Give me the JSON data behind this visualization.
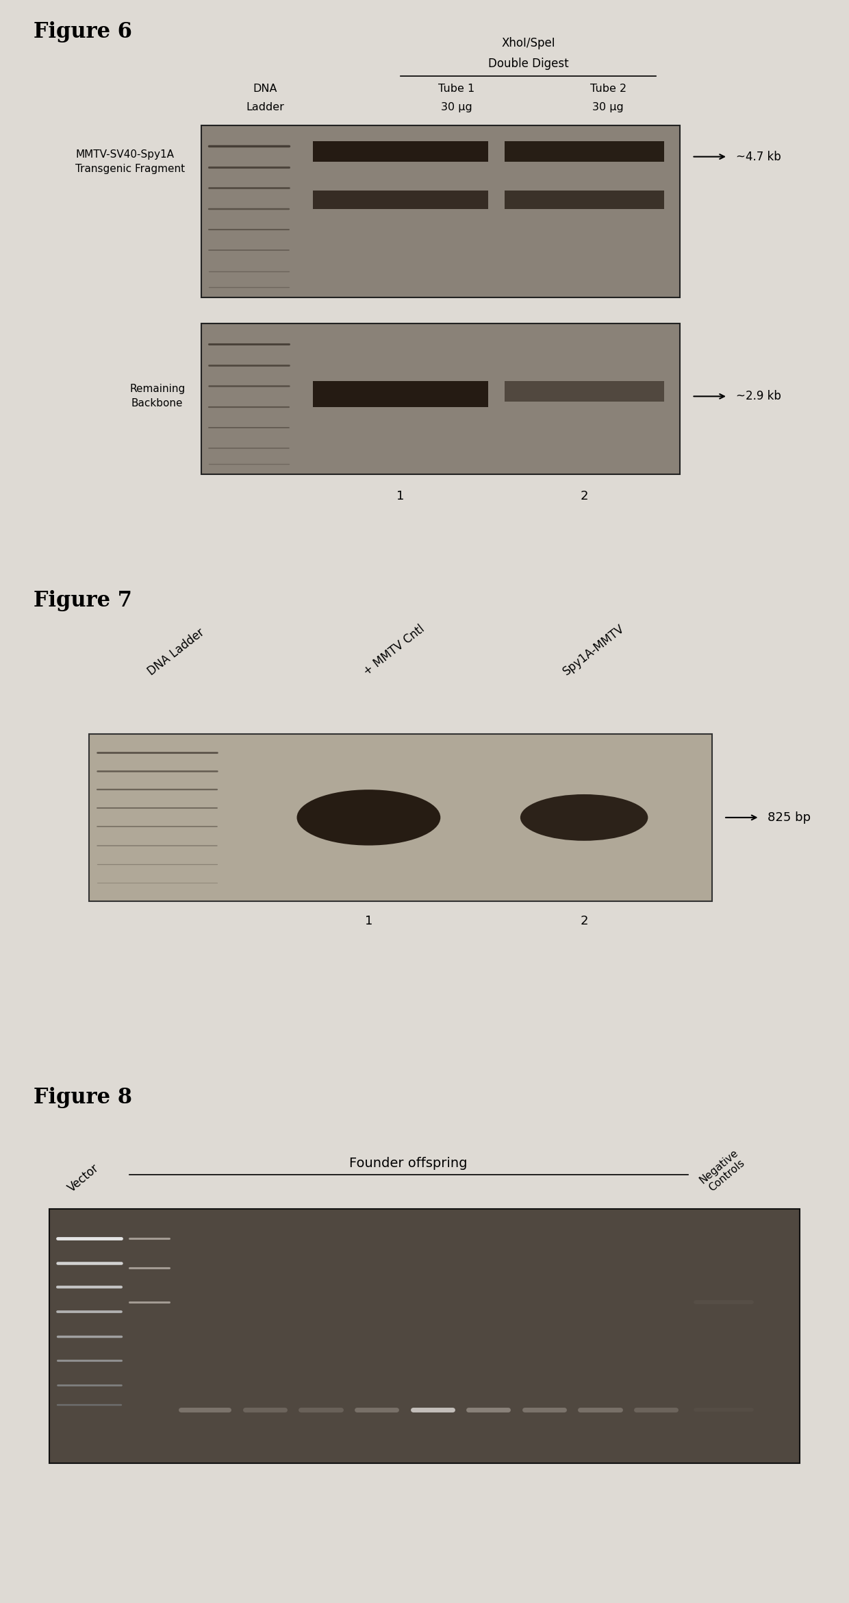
{
  "fig6_title": "Figure 6",
  "fig7_title": "Figure 7",
  "fig8_title": "Figure 8",
  "page_bg": "#dedad4",
  "fig6_header1": "XhoI/SpeI",
  "fig6_header2": "Double Digest",
  "fig6_col1_l1": "DNA",
  "fig6_col1_l2": "Ladder",
  "fig6_col2_l1": "Tube 1",
  "fig6_col2_l2": "30 μg",
  "fig6_col3_l1": "Tube 2",
  "fig6_col3_l2": "30 μg",
  "fig6_label_top": "MMTV-SV40-Spy1A\nTransgenic Fragment",
  "fig6_label_bot": "Remaining\nBackbone",
  "fig6_arrow_top": "~4.7 kb",
  "fig6_arrow_bot": "~2.9 kb",
  "fig6_num1": "1",
  "fig6_num2": "2",
  "fig7_col1": "DNA Ladder",
  "fig7_col2": "+ MMTV Cntl",
  "fig7_col3": "Spy1A-MMTV",
  "fig7_arrow": "825 bp",
  "fig7_num1": "1",
  "fig7_num2": "2",
  "fig8_label_left": "Vector",
  "fig8_label_mid": "Founder offspring",
  "fig8_label_right": "Negative\nControls",
  "gel6_bg": "#8a8278",
  "gel7_bg": "#b0a898",
  "gel8_bg": "#504840",
  "band_dark": "#1a1008",
  "ladder_color": "#302820"
}
